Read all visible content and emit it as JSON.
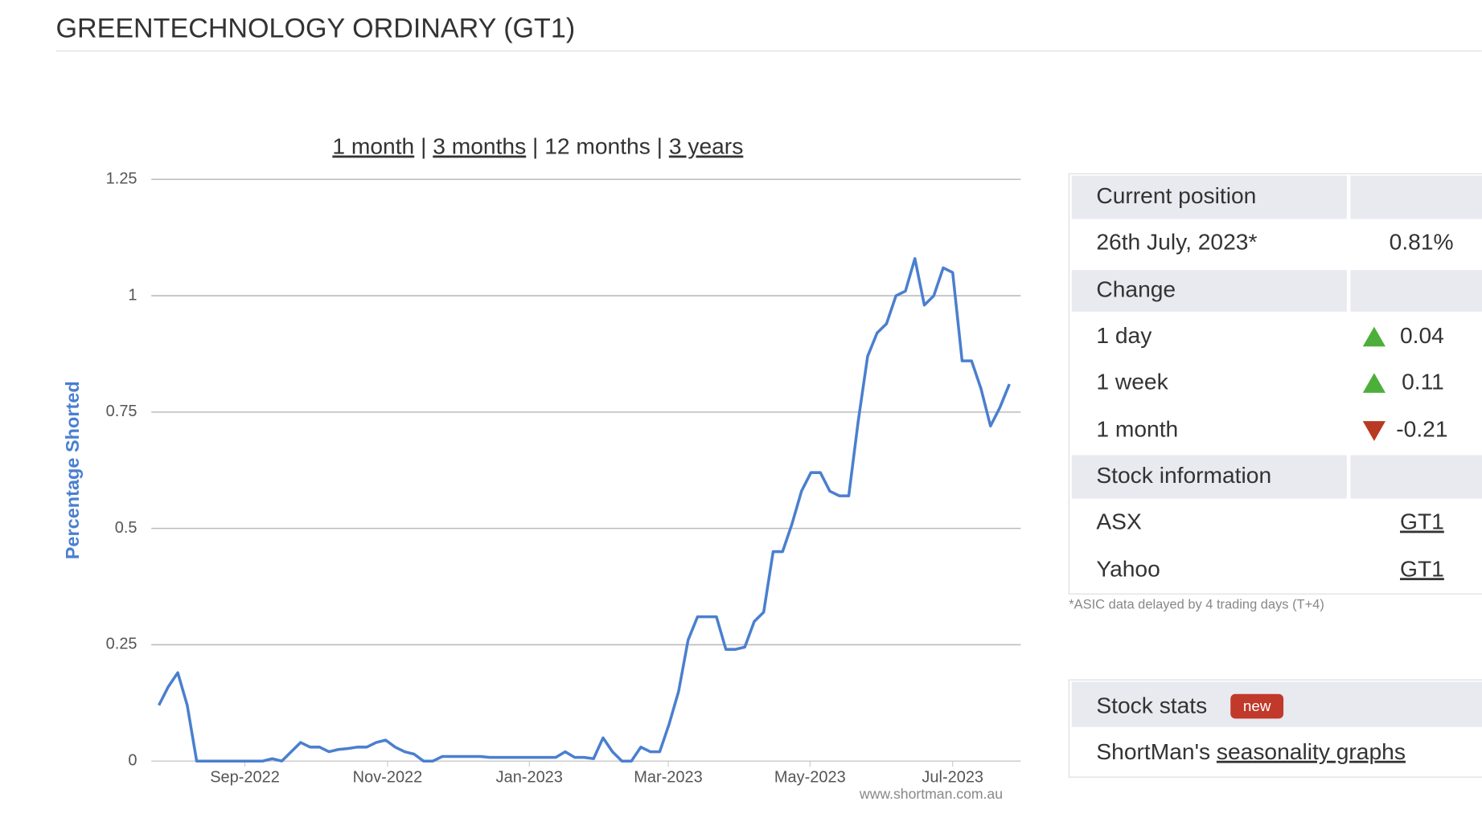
{
  "header": {
    "title": "GREENTECHNOLOGY ORDINARY (GT1)"
  },
  "range_links": {
    "items": [
      "1 month",
      "3 months",
      "12 months",
      "3 years"
    ],
    "separator": "|"
  },
  "chart_data": {
    "type": "line",
    "y_label": "Percentage Shorted",
    "watermark": "www.shortman.com.au",
    "series": [
      {
        "color": "#4a7fcf",
        "values": [
          0.12,
          0.16,
          0.19,
          0.12,
          0,
          0,
          0,
          0,
          0,
          0,
          0,
          0,
          0.005,
          0,
          0.02,
          0.04,
          0.03,
          0.03,
          0.02,
          0.025,
          0.027,
          0.03,
          0.03,
          0.04,
          0.045,
          0.03,
          0.02,
          0.015,
          0,
          0,
          0.01,
          0.01,
          0.01,
          0.01,
          0.01,
          0.008,
          0.008,
          0.008,
          0.008,
          0.008,
          0.008,
          0.008,
          0.008,
          0.02,
          0.008,
          0.008,
          0.005,
          0.05,
          0.02,
          0,
          0,
          0.03,
          0.02,
          0.02,
          0.08,
          0.15,
          0.26,
          0.31,
          0.31,
          0.31,
          0.24,
          0.24,
          0.245,
          0.3,
          0.32,
          0.45,
          0.45,
          0.51,
          0.58,
          0.62,
          0.62,
          0.58,
          0.57,
          0.57,
          0.73,
          0.87,
          0.92,
          0.94,
          1.0,
          1.01,
          1.08,
          0.98,
          1.0,
          1.06,
          1.05,
          0.86,
          0.86,
          0.8,
          0.72,
          0.76,
          0.81
        ]
      }
    ],
    "xlim": [
      -0.8,
      91.2
    ],
    "xticks": [
      {
        "value": 9.1,
        "label": "Sep-2022"
      },
      {
        "value": 24.2,
        "label": "Nov-2022"
      },
      {
        "value": 39.2,
        "label": "Jan-2023"
      },
      {
        "value": 53.9,
        "label": "Mar-2023"
      },
      {
        "value": 68.9,
        "label": "May-2023"
      },
      {
        "value": 84,
        "label": "Jul-2023"
      }
    ],
    "ylim": [
      0,
      1.25
    ],
    "yticks": [
      0,
      0.25,
      0.5,
      0.75,
      1,
      1.25
    ],
    "grid": true
  },
  "panel": {
    "current": {
      "heading": "Current position",
      "date": "26th July, 2023*",
      "value": "0.81%"
    },
    "change": {
      "heading": "Change",
      "rows": [
        [
          "1 day",
          "0.04"
        ],
        [
          "1 week",
          "0.11"
        ],
        [
          "1 month",
          "-0.21"
        ]
      ]
    },
    "stock_info": {
      "heading": "Stock information",
      "rows": [
        [
          "ASX",
          "GT1"
        ],
        [
          "Yahoo",
          "GT1"
        ]
      ]
    },
    "footnote": "*ASIC data delayed by 4 trading days (T+4)"
  },
  "stats": {
    "heading": "Stock stats",
    "badge": "new",
    "prefix": "ShortMan's",
    "link": "seasonality graphs"
  }
}
